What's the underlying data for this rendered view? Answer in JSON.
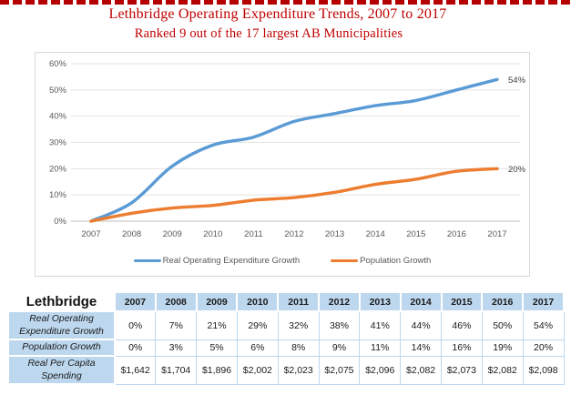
{
  "page": {
    "top_border_color": "#b40000",
    "background": "#ffffff"
  },
  "chart_data": {
    "type": "line",
    "title": "Lethbridge Operating Expenditure Trends, 2007 to 2017",
    "subtitle": "Ranked 9 out of the 17 largest AB Municipalities",
    "title_color": "#c00000",
    "categories": [
      "2007",
      "2008",
      "2009",
      "2010",
      "2011",
      "2012",
      "2013",
      "2014",
      "2015",
      "2016",
      "2017"
    ],
    "series": [
      {
        "name": "Real Operating Expenditure Growth",
        "color": "#5b9bd5",
        "values": [
          0,
          7,
          21,
          29,
          32,
          38,
          41,
          44,
          46,
          50,
          54
        ],
        "end_label": "54%"
      },
      {
        "name": "Population Growth",
        "color": "#ed7d31",
        "values": [
          0,
          3,
          5,
          6,
          8,
          9,
          11,
          14,
          16,
          19,
          20
        ],
        "end_label": "20%"
      }
    ],
    "ylim": [
      0,
      60
    ],
    "y_tick_step": 10,
    "y_tick_suffix": "%",
    "grid": true,
    "smooth": true,
    "legend_position": "bottom",
    "axis_text_color": "#595959",
    "end_label_color": "#3f3f3f",
    "gridline_color": "#e2e2e2",
    "axisline_color": "#bfbfbf"
  },
  "table": {
    "corner_label": "Lethbridge",
    "columns": [
      "2007",
      "2008",
      "2009",
      "2010",
      "2011",
      "2012",
      "2013",
      "2014",
      "2015",
      "2016",
      "2017"
    ],
    "rows": [
      {
        "label": "Real Operating Expenditure Growth",
        "values": [
          "0%",
          "7%",
          "21%",
          "29%",
          "32%",
          "38%",
          "41%",
          "44%",
          "46%",
          "50%",
          "54%"
        ]
      },
      {
        "label": "Population Growth",
        "values": [
          "0%",
          "3%",
          "5%",
          "6%",
          "8%",
          "9%",
          "11%",
          "14%",
          "16%",
          "19%",
          "20%"
        ]
      },
      {
        "label": "Real Per Capita Spending",
        "values": [
          "$1,642",
          "$1,704",
          "$1,896",
          "$2,002",
          "$2,023",
          "$2,075",
          "$2,096",
          "$2,082",
          "$2,073",
          "$2,082",
          "$2,098"
        ]
      }
    ],
    "header_bg": "#bdd7ee"
  }
}
